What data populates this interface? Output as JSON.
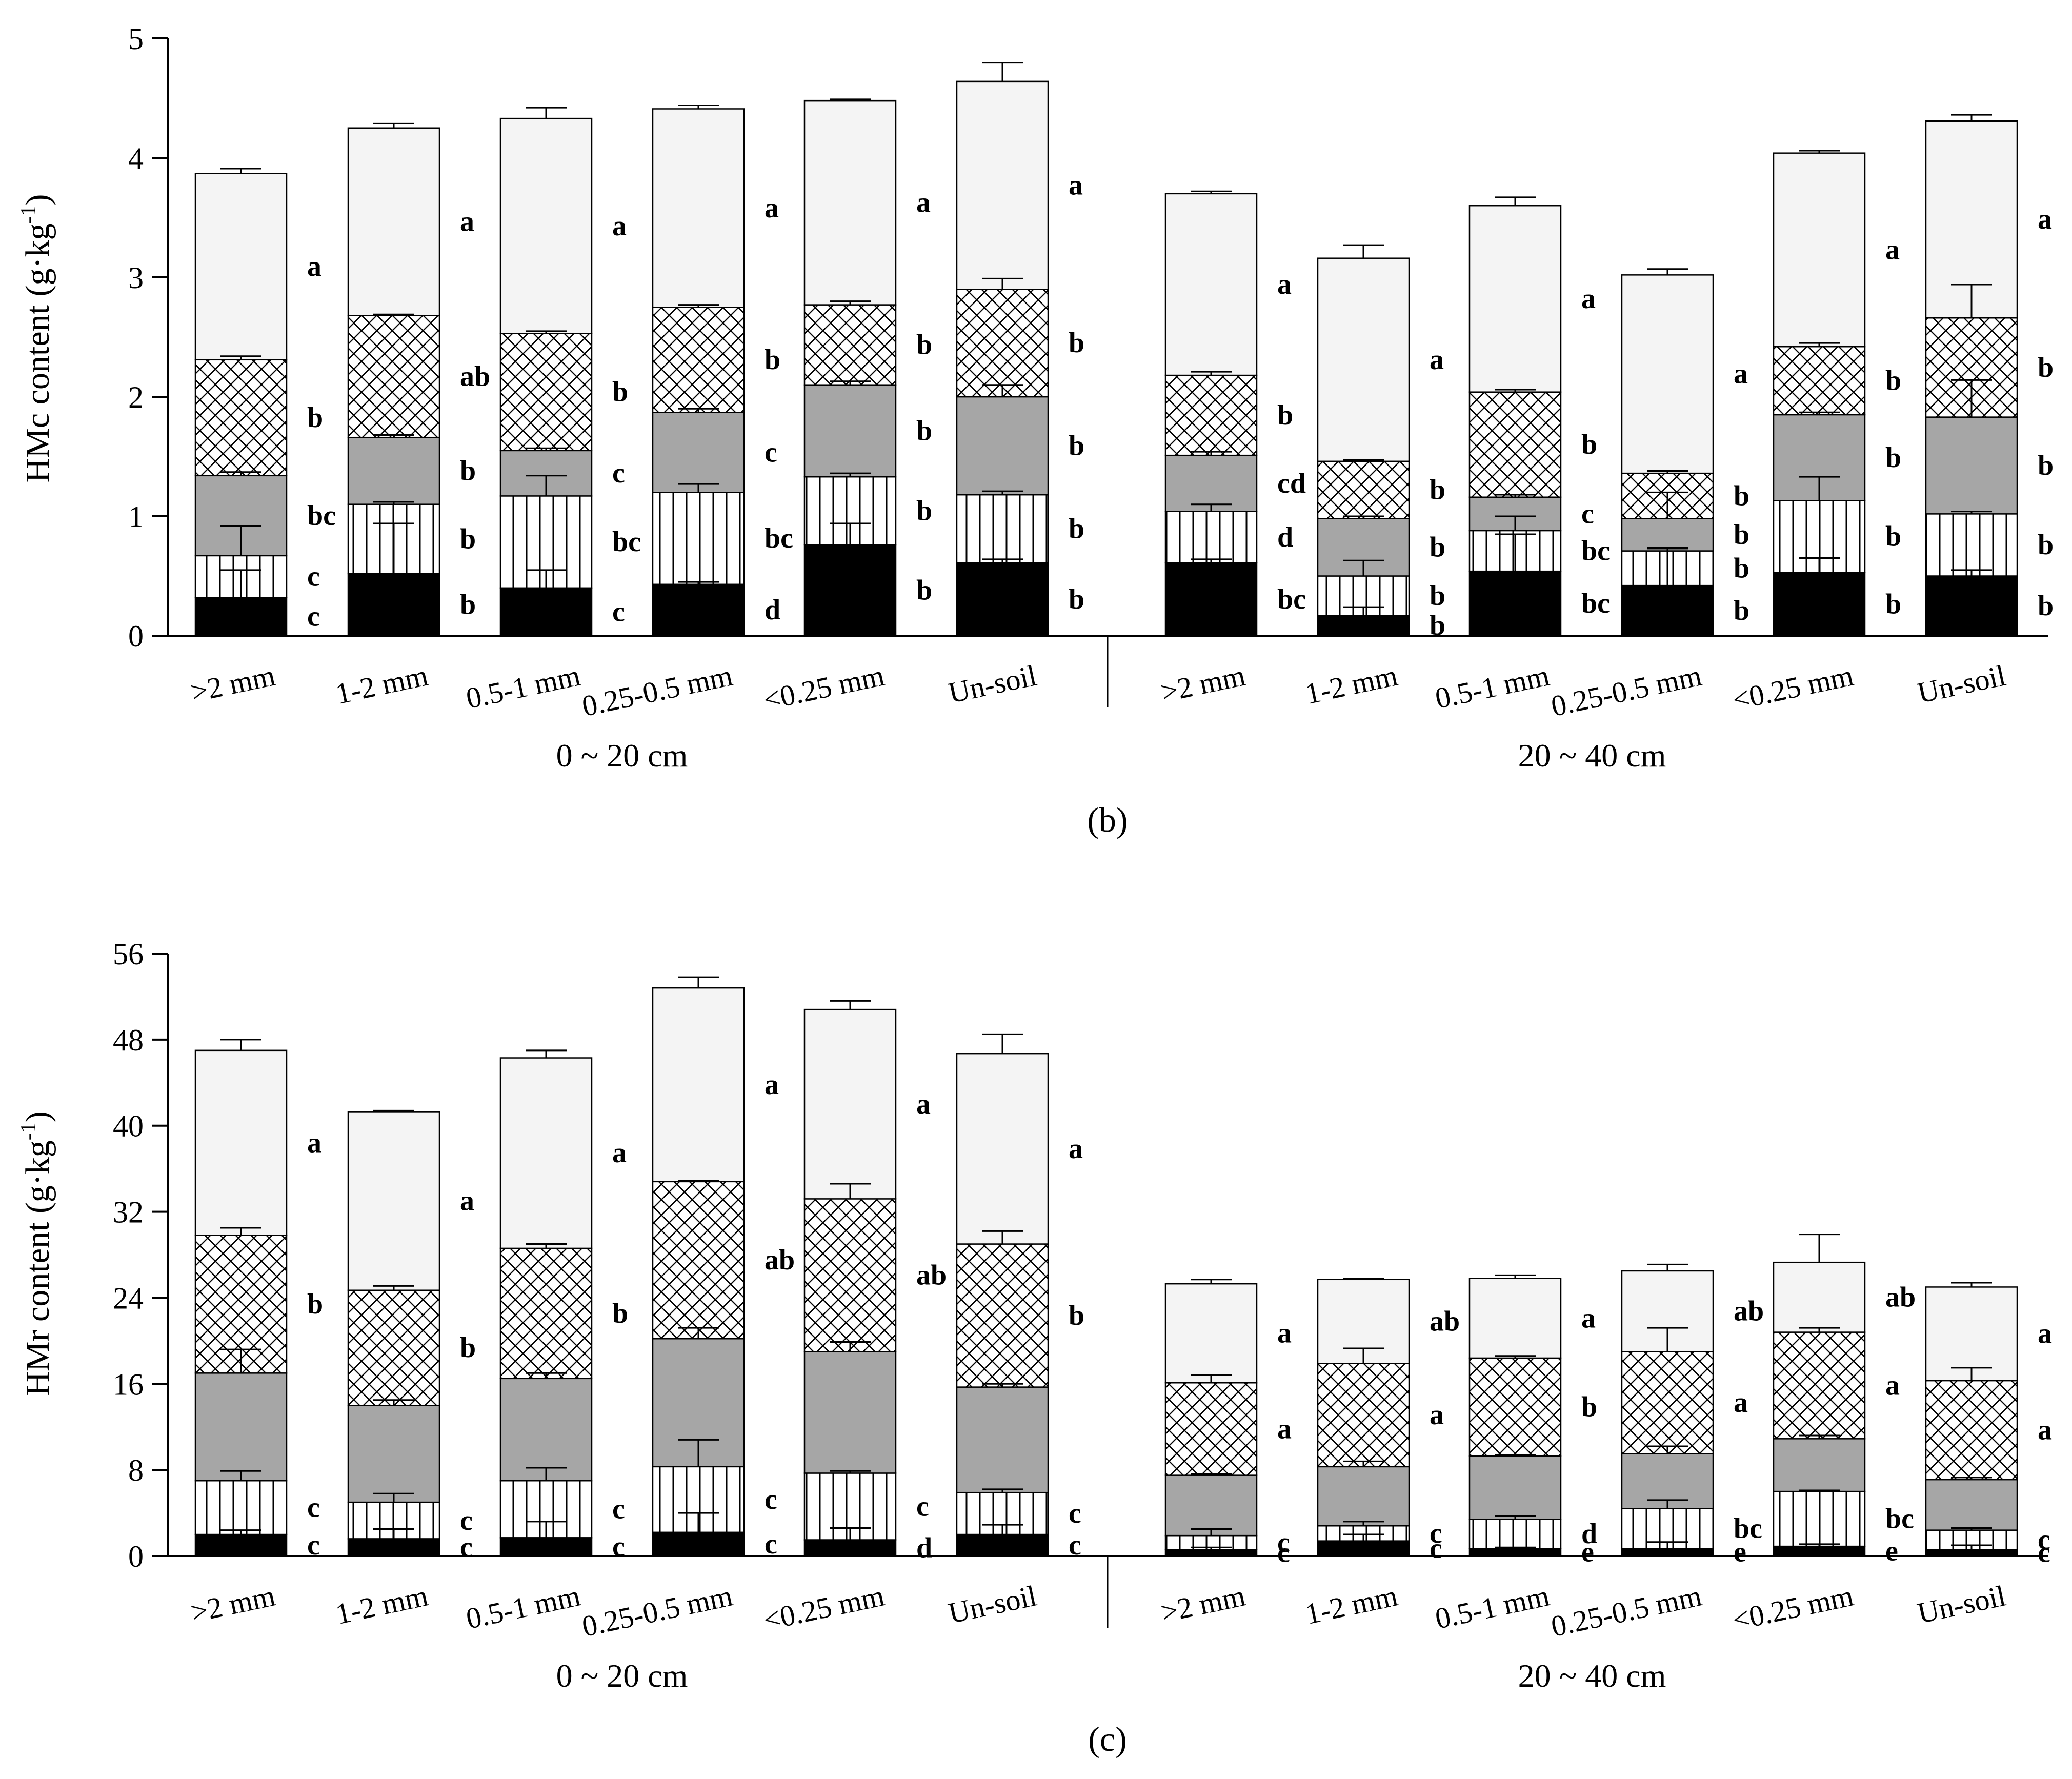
{
  "figure": {
    "panels": [
      "(b)",
      "(c)"
    ]
  },
  "chart_data": [
    {
      "type": "bar",
      "stacked": true,
      "panel_label": "(b)",
      "ylabel": "HMc content (g·kg⁻¹)",
      "ylabel_parts": {
        "base": "HMc content (g·kg",
        "sup": "-1",
        "end": ")"
      },
      "ylim": [
        0,
        5
      ],
      "yticks": [
        0,
        1,
        2,
        3,
        4,
        5
      ],
      "groups": [
        "0 ~ 20 cm",
        "20 ~ 40 cm"
      ],
      "categories": [
        ">2 mm",
        "1-2 mm",
        "0.5-1 mm",
        "0.25-0.5 mm",
        "<0.25 mm",
        "Un-soil"
      ],
      "fills": {
        "bottom": "#000000",
        "second": "vlines",
        "third": "#a6a6a6",
        "fourth": "crosshatch",
        "top": "#f4f4f4"
      },
      "bars": [
        {
          "group": 0,
          "category": 0,
          "tops": [
            0.32,
            0.67,
            1.34,
            2.31,
            3.87
          ],
          "err_tops": [
            0.55,
            0.92,
            1.37,
            2.34,
            3.91
          ],
          "letters": [
            "c",
            "c",
            "bc",
            "b",
            "a"
          ]
        },
        {
          "group": 0,
          "category": 1,
          "tops": [
            0.52,
            1.1,
            1.66,
            2.68,
            4.25
          ],
          "err_tops": [
            0.94,
            1.12,
            1.68,
            2.69,
            4.29
          ],
          "letters": [
            "b",
            "b",
            "b",
            "ab",
            "a"
          ]
        },
        {
          "group": 0,
          "category": 2,
          "tops": [
            0.4,
            1.17,
            1.55,
            2.53,
            4.33
          ],
          "err_tops": [
            0.55,
            1.34,
            1.57,
            2.55,
            4.42
          ],
          "letters": [
            "c",
            "bc",
            "c",
            "b",
            "a"
          ]
        },
        {
          "group": 0,
          "category": 3,
          "tops": [
            0.43,
            1.2,
            1.87,
            2.75,
            4.41
          ],
          "err_tops": [
            0.45,
            1.27,
            1.9,
            2.77,
            4.44
          ],
          "letters": [
            "d",
            "bc",
            "c",
            "b",
            "a"
          ]
        },
        {
          "group": 0,
          "category": 4,
          "tops": [
            0.76,
            1.33,
            2.1,
            2.77,
            4.48
          ],
          "err_tops": [
            0.94,
            1.36,
            2.13,
            2.8,
            4.49
          ],
          "letters": [
            "b",
            "b",
            "b",
            "b",
            "a"
          ]
        },
        {
          "group": 0,
          "category": 5,
          "tops": [
            0.61,
            1.18,
            2.0,
            2.9,
            4.64
          ],
          "err_tops": [
            0.64,
            1.21,
            2.1,
            2.99,
            4.8
          ],
          "letters": [
            "b",
            "b",
            "b",
            "b",
            "a"
          ]
        },
        {
          "group": 1,
          "category": 0,
          "tops": [
            0.61,
            1.04,
            1.51,
            2.18,
            3.7
          ],
          "err_tops": [
            0.64,
            1.1,
            1.54,
            2.21,
            3.72
          ],
          "letters": [
            "bc",
            "d",
            "cd",
            "b",
            "a"
          ]
        },
        {
          "group": 1,
          "category": 1,
          "tops": [
            0.17,
            0.5,
            0.98,
            1.46,
            3.16
          ],
          "err_tops": [
            0.24,
            0.63,
            1.0,
            1.47,
            3.27
          ],
          "letters": [
            "b",
            "b",
            "b",
            "b",
            "a"
          ]
        },
        {
          "group": 1,
          "category": 2,
          "tops": [
            0.54,
            0.88,
            1.16,
            2.04,
            3.6
          ],
          "err_tops": [
            0.85,
            1.0,
            1.18,
            2.06,
            3.67
          ],
          "letters": [
            "bc",
            "bc",
            "c",
            "b",
            "a"
          ]
        },
        {
          "group": 1,
          "category": 3,
          "tops": [
            0.42,
            0.71,
            0.98,
            1.36,
            3.02
          ],
          "err_tops": [
            0.73,
            0.74,
            1.2,
            1.38,
            3.07
          ],
          "letters": [
            "b",
            "b",
            "b",
            "b",
            "a"
          ]
        },
        {
          "group": 1,
          "category": 4,
          "tops": [
            0.53,
            1.13,
            1.85,
            2.42,
            4.04
          ],
          "err_tops": [
            0.65,
            1.33,
            1.87,
            2.45,
            4.06
          ],
          "letters": [
            "b",
            "b",
            "b",
            "b",
            "a"
          ]
        },
        {
          "group": 1,
          "category": 5,
          "tops": [
            0.5,
            1.02,
            1.83,
            2.66,
            4.31
          ],
          "err_tops": [
            0.55,
            1.04,
            2.14,
            2.94,
            4.36
          ],
          "letters": [
            "b",
            "b",
            "b",
            "b",
            "a"
          ]
        }
      ]
    },
    {
      "type": "bar",
      "stacked": true,
      "panel_label": "(c)",
      "ylabel": "HMr content (g·kg⁻¹)",
      "ylabel_parts": {
        "base": "HMr content (g·kg",
        "sup": "-1",
        "end": ")"
      },
      "ylim": [
        0,
        56
      ],
      "yticks": [
        0,
        8,
        16,
        24,
        32,
        40,
        48,
        56
      ],
      "groups": [
        "0 ~ 20 cm",
        "20 ~ 40 cm"
      ],
      "categories": [
        ">2 mm",
        "1-2 mm",
        "0.5-1 mm",
        "0.25-0.5 mm",
        "<0.25 mm",
        "Un-soil"
      ],
      "fills": {
        "bottom": "#000000",
        "second": "vlines",
        "third": "#a6a6a6",
        "fourth": "crosshatch",
        "top": "#f4f4f4"
      },
      "bars": [
        {
          "group": 0,
          "category": 0,
          "tops": [
            2.0,
            7.0,
            17.0,
            29.8,
            47.0
          ],
          "err_tops": [
            2.4,
            7.9,
            19.2,
            30.5,
            48.0
          ],
          "letters": [
            "c",
            "c",
            "",
            "b",
            "a"
          ]
        },
        {
          "group": 0,
          "category": 1,
          "tops": [
            1.6,
            5.0,
            14.0,
            24.7,
            41.3
          ],
          "err_tops": [
            2.5,
            5.8,
            14.5,
            25.1,
            41.4
          ],
          "letters": [
            "c",
            "c",
            "",
            "b",
            "a"
          ]
        },
        {
          "group": 0,
          "category": 2,
          "tops": [
            1.7,
            7.0,
            16.5,
            28.6,
            46.3
          ],
          "err_tops": [
            3.2,
            8.2,
            17.0,
            29.0,
            47.0
          ],
          "letters": [
            "c",
            "c",
            "",
            "b",
            "a"
          ]
        },
        {
          "group": 0,
          "category": 3,
          "tops": [
            2.2,
            8.3,
            20.2,
            34.8,
            52.8
          ],
          "err_tops": [
            4.0,
            10.8,
            21.2,
            34.9,
            53.8
          ],
          "letters": [
            "c",
            "c",
            "",
            "ab",
            "a"
          ]
        },
        {
          "group": 0,
          "category": 4,
          "tops": [
            1.5,
            7.7,
            19.0,
            33.2,
            50.8
          ],
          "err_tops": [
            2.6,
            7.9,
            19.9,
            34.6,
            51.6
          ],
          "letters": [
            "d",
            "c",
            "",
            "ab",
            "a"
          ]
        },
        {
          "group": 0,
          "category": 5,
          "tops": [
            2.0,
            5.9,
            15.7,
            29.0,
            46.7
          ],
          "err_tops": [
            2.9,
            6.2,
            16.0,
            30.2,
            48.5
          ],
          "letters": [
            "c",
            "c",
            "",
            "b",
            "a"
          ]
        },
        {
          "group": 1,
          "category": 0,
          "tops": [
            0.6,
            1.9,
            7.5,
            16.1,
            25.3
          ],
          "err_tops": [
            0.8,
            2.5,
            7.6,
            16.8,
            25.7
          ],
          "letters": [
            "c",
            "c",
            "",
            "a",
            "a"
          ]
        },
        {
          "group": 1,
          "category": 1,
          "tops": [
            1.4,
            2.8,
            8.3,
            17.9,
            25.7
          ],
          "err_tops": [
            2.0,
            3.2,
            8.8,
            19.3,
            25.8
          ],
          "letters": [
            "c",
            "c",
            "",
            "a",
            "ab"
          ]
        },
        {
          "group": 1,
          "category": 2,
          "tops": [
            0.7,
            3.4,
            9.3,
            18.4,
            25.8
          ],
          "err_tops": [
            0.8,
            3.7,
            9.4,
            18.6,
            26.1
          ],
          "letters": [
            "e",
            "d",
            "",
            "b",
            "a"
          ]
        },
        {
          "group": 1,
          "category": 3,
          "tops": [
            0.7,
            4.4,
            9.5,
            19.0,
            26.5
          ],
          "err_tops": [
            1.3,
            5.2,
            10.2,
            21.2,
            27.1
          ],
          "letters": [
            "e",
            "bc",
            "",
            "a",
            "ab"
          ]
        },
        {
          "group": 1,
          "category": 4,
          "tops": [
            0.9,
            6.0,
            10.9,
            20.8,
            27.3
          ],
          "err_tops": [
            1.1,
            6.1,
            11.2,
            21.2,
            29.9
          ],
          "letters": [
            "e",
            "bc",
            "",
            "a",
            "ab"
          ]
        },
        {
          "group": 1,
          "category": 5,
          "tops": [
            0.6,
            2.4,
            7.1,
            16.3,
            25.0
          ],
          "err_tops": [
            1.0,
            2.6,
            7.3,
            17.5,
            25.4
          ],
          "letters": [
            "c",
            "c",
            "",
            "a",
            "a"
          ]
        }
      ]
    }
  ]
}
